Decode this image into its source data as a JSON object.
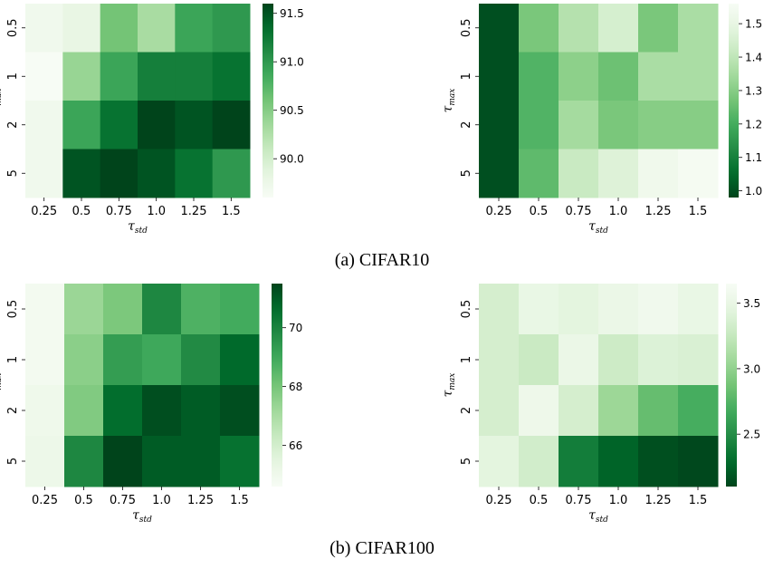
{
  "captions": [
    "(a) CIFAR10",
    "(b) CIFAR100"
  ],
  "chart_data": [
    {
      "type": "heatmap",
      "group": "(a) CIFAR10",
      "x": [
        "0.25",
        "0.5",
        "0.75",
        "1.0",
        "1.25",
        "1.5"
      ],
      "y": [
        "0.5",
        "1",
        "2",
        "5"
      ],
      "xlabel_symbol": "τ",
      "xlabel_sub": "std",
      "ylabel_symbol": "τ",
      "ylabel_sub": "max",
      "values": [
        [
          89.7,
          89.8,
          90.6,
          90.3,
          90.9,
          91.0
        ],
        [
          89.6,
          90.4,
          90.9,
          91.2,
          91.2,
          91.3
        ],
        [
          89.7,
          90.9,
          91.3,
          91.7,
          91.5,
          91.7
        ],
        [
          89.7,
          91.5,
          91.7,
          91.5,
          91.3,
          91.0
        ]
      ],
      "cbar_range": [
        89.6,
        91.6
      ],
      "cbar_ticks": [
        "90.0",
        "90.5",
        "91.0",
        "91.5"
      ],
      "cbar_tick_values": [
        90.0,
        90.5,
        91.0,
        91.5
      ],
      "colormap": "Greens",
      "reversed": false
    },
    {
      "type": "heatmap",
      "group": "(a) CIFAR10",
      "x": [
        "0.25",
        "0.5",
        "0.75",
        "1.0",
        "1.25",
        "1.5"
      ],
      "y": [
        "0.5",
        "1",
        "2",
        "5"
      ],
      "xlabel_symbol": "τ",
      "xlabel_sub": "std",
      "ylabel_symbol": "τ",
      "ylabel_sub": "max",
      "values": [
        [
          1.0,
          1.28,
          1.38,
          1.45,
          1.28,
          1.36
        ],
        [
          1.0,
          1.22,
          1.31,
          1.26,
          1.36,
          1.36
        ],
        [
          1.0,
          1.22,
          1.35,
          1.28,
          1.3,
          1.3
        ],
        [
          1.0,
          1.24,
          1.42,
          1.47,
          1.53,
          1.55
        ]
      ],
      "cbar_range": [
        0.98,
        1.56
      ],
      "cbar_ticks": [
        "1.0",
        "1.1",
        "1.2",
        "1.3",
        "1.4",
        "1.5"
      ],
      "cbar_tick_values": [
        1.0,
        1.1,
        1.2,
        1.3,
        1.4,
        1.5
      ],
      "colormap": "Greens",
      "reversed": true
    },
    {
      "type": "heatmap",
      "group": "(b) CIFAR100",
      "x": [
        "0.25",
        "0.5",
        "0.75",
        "1.0",
        "1.25",
        "1.5"
      ],
      "y": [
        "0.5",
        "1",
        "2",
        "5"
      ],
      "xlabel_symbol": "τ",
      "xlabel_sub": "std",
      "ylabel_symbol": "τ",
      "ylabel_sub": "max",
      "values": [
        [
          64.8,
          67.3,
          67.9,
          69.9,
          68.7,
          68.9
        ],
        [
          64.8,
          67.6,
          69.3,
          69.0,
          69.8,
          70.7
        ],
        [
          65.0,
          67.8,
          70.6,
          71.3,
          71.0,
          71.3
        ],
        [
          65.1,
          69.9,
          71.5,
          71.0,
          71.0,
          70.5
        ]
      ],
      "cbar_range": [
        64.6,
        71.5
      ],
      "cbar_ticks": [
        "66",
        "68",
        "70"
      ],
      "cbar_tick_values": [
        66,
        68,
        70
      ],
      "colormap": "Greens",
      "reversed": false
    },
    {
      "type": "heatmap",
      "group": "(b) CIFAR100",
      "x": [
        "0.25",
        "0.5",
        "0.75",
        "1.0",
        "1.25",
        "1.5"
      ],
      "y": [
        "0.5",
        "1",
        "2",
        "5"
      ],
      "xlabel_symbol": "τ",
      "xlabel_sub": "std",
      "ylabel_symbol": "τ",
      "ylabel_sub": "max",
      "values": [
        [
          3.35,
          3.5,
          3.45,
          3.52,
          3.58,
          3.5
        ],
        [
          3.35,
          3.28,
          3.52,
          3.3,
          3.4,
          3.38
        ],
        [
          3.35,
          3.55,
          3.35,
          3.05,
          2.82,
          2.7
        ],
        [
          3.45,
          3.33,
          2.4,
          2.25,
          2.15,
          2.12
        ]
      ],
      "cbar_range": [
        2.1,
        3.65
      ],
      "cbar_ticks": [
        "2.5",
        "3.0",
        "3.5"
      ],
      "cbar_tick_values": [
        2.5,
        3.0,
        3.5
      ],
      "colormap": "Greens",
      "reversed": true
    }
  ]
}
